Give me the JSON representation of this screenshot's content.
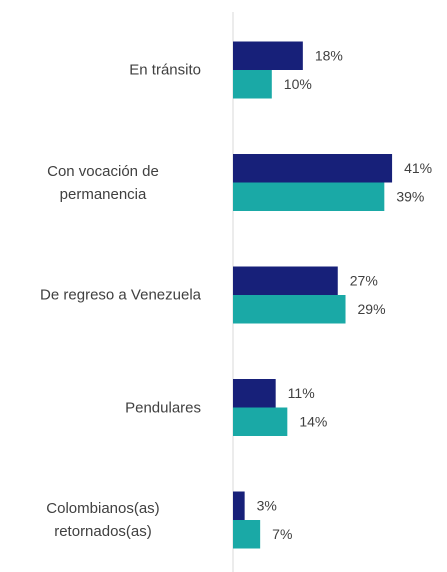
{
  "chart_data": {
    "type": "barh",
    "categories": [
      "En tránsito",
      "Con vocación de permanencia",
      "De regreso a Venezuela",
      "Pendulares",
      "Colombianos(as) retornados(as)"
    ],
    "series": [
      {
        "color": "#172079",
        "values": [
          18,
          41,
          27,
          11,
          3
        ],
        "value_labels": [
          "18%",
          "41%",
          "27%",
          "11%",
          "3%"
        ]
      },
      {
        "color": "#1aa9a6",
        "values": [
          10,
          39,
          29,
          14,
          7
        ],
        "value_labels": [
          "10%",
          "39%",
          "29%",
          "14%",
          "7%"
        ]
      }
    ]
  }
}
